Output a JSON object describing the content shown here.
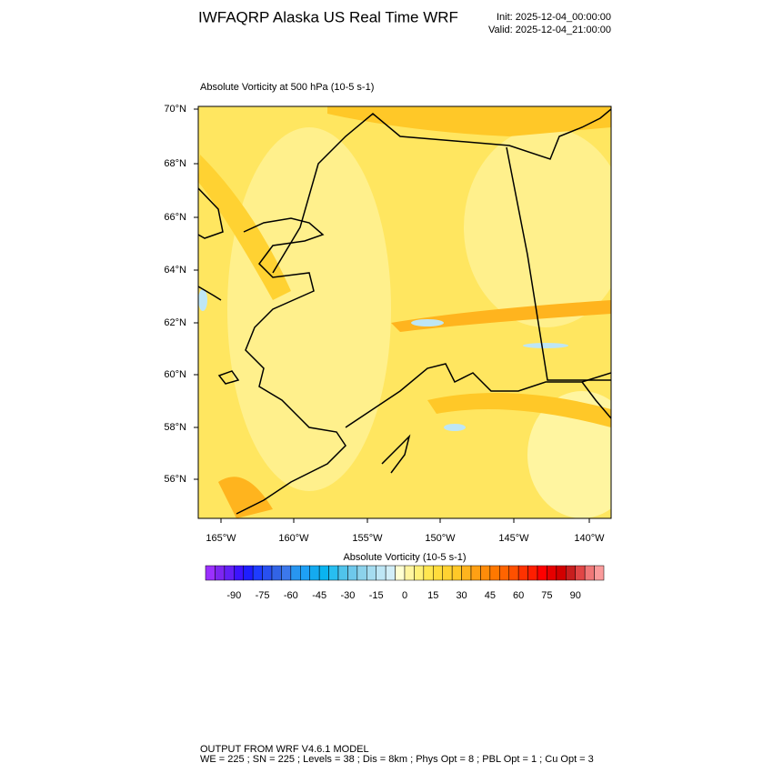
{
  "header": {
    "title": "IWFAQRP Alaska US Real Time WRF",
    "init": "Init: 2025-12-04_00:00:00",
    "valid": "Valid: 2025-12-04_21:00:00"
  },
  "map": {
    "subtitle": "Absolute Vorticity at 500 hPa   (10-5 s-1)",
    "lat_labels": [
      "70°N",
      "68°N",
      "66°N",
      "64°N",
      "62°N",
      "60°N",
      "58°N",
      "56°N"
    ],
    "lon_labels": [
      "165°W",
      "160°W",
      "155°W",
      "150°W",
      "145°W",
      "140°W"
    ]
  },
  "colorbar": {
    "title": "Absolute Vorticity  (10-5 s-1)",
    "range": [
      -105,
      105
    ],
    "ticks": [
      -90,
      -75,
      -60,
      -45,
      -30,
      -15,
      0,
      15,
      30,
      45,
      60,
      75,
      90
    ],
    "colors": [
      "#9b30ff",
      "#7d26f0",
      "#6320f5",
      "#3c14ff",
      "#1e1eff",
      "#1e3cff",
      "#2850f0",
      "#3264e6",
      "#3c78eb",
      "#2896f0",
      "#1ea0f5",
      "#14aaf0",
      "#0ab4f0",
      "#28bef0",
      "#50c3eb",
      "#6ec8eb",
      "#8cd2eb",
      "#a5dcf0",
      "#bee6f5",
      "#d2eef8",
      "#ffffd2",
      "#fff5a0",
      "#fff078",
      "#ffe650",
      "#ffdc3c",
      "#ffd232",
      "#ffc828",
      "#ffb41e",
      "#ffa014",
      "#ff8c0a",
      "#ff7800",
      "#ff6400",
      "#ff5000",
      "#ff3200",
      "#ff1e00",
      "#ff0000",
      "#e60000",
      "#d20000",
      "#c81e1e",
      "#e14646",
      "#f07878",
      "#fa9b9b"
    ]
  },
  "footer": {
    "line1": "OUTPUT FROM WRF V4.6.1 MODEL",
    "line2": "WE = 225 ; SN = 225 ; Levels = 38 ; Dis = 8km ; Phys Opt = 8 ; PBL Opt = 1 ; Cu Opt = 3"
  }
}
